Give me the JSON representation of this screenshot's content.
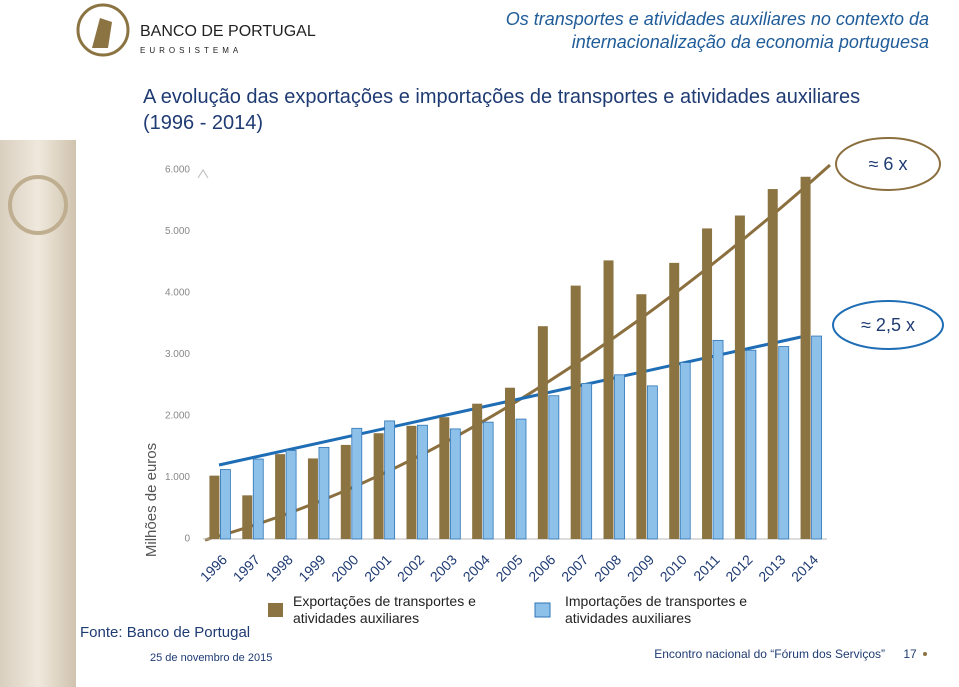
{
  "header": {
    "title": "Os transportes e atividades auxiliares no contexto da internacionalização da economia portuguesa"
  },
  "logo": {
    "name": "BANCO DE PORTUGAL",
    "sub": "EUROSISTEMA"
  },
  "footer": {
    "date": "25 de novembro de 2015",
    "event": "Encontro nacional do “Fórum dos Serviços”",
    "page": "17"
  },
  "chart_data": {
    "type": "bar",
    "title": "A evolução das exportações e importações de transportes e atividades auxiliares (1996 - 2014)",
    "y_label": "Milhões de euros",
    "source": "Fonte: Banco de Portugal",
    "annotations": [
      "≈ 6 x",
      "≈ 2,5 x"
    ],
    "categories": [
      "1996",
      "1997",
      "1998",
      "1999",
      "2000",
      "2001",
      "2002",
      "2003",
      "2004",
      "2005",
      "2006",
      "2007",
      "2008",
      "2009",
      "2010",
      "2011",
      "2012",
      "2013",
      "2014"
    ],
    "series": [
      {
        "name": "Exportações de transportes e atividades auxiliares",
        "color": "#8b7442",
        "values": [
          1030,
          710,
          1380,
          1310,
          1530,
          1720,
          1840,
          1980,
          2200,
          2460,
          3460,
          4120,
          4530,
          3980,
          4490,
          5050,
          5260,
          5690,
          5890
        ]
      },
      {
        "name": "Importações de transportes e atividades auxiliares",
        "color": "#8ec1ea",
        "values": [
          1130,
          1300,
          1440,
          1490,
          1800,
          1920,
          1850,
          1790,
          1900,
          1950,
          2330,
          2530,
          2670,
          2490,
          2870,
          3230,
          3070,
          3130,
          3300
        ]
      }
    ],
    "ylim": [
      0,
      6000
    ],
    "yticks": [
      0,
      {
        "value": 1000,
        "label": "1.000"
      },
      {
        "value": 2000,
        "label": "2.000"
      },
      {
        "value": 3000,
        "label": "3.000"
      },
      {
        "value": 4000,
        "label": "4.000"
      },
      {
        "value": 5000,
        "label": "5.000"
      },
      {
        "value": 6000,
        "label": "6.000"
      }
    ]
  }
}
